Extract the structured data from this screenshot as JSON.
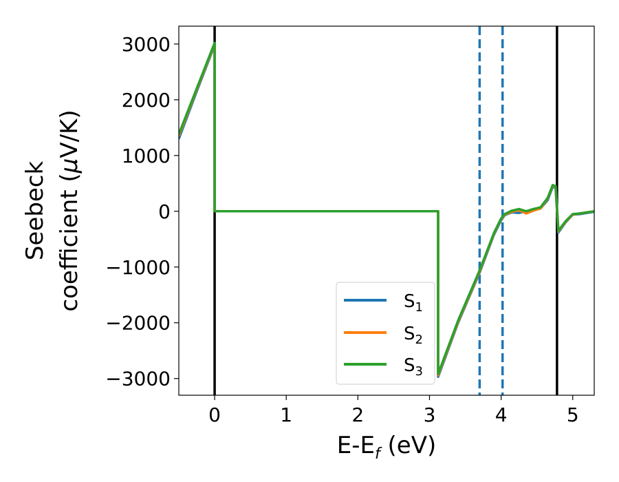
{
  "chart_data": {
    "type": "line",
    "xlabel_main": "E-E",
    "xlabel_sub": "f",
    "xlabel_tail": " (eV)",
    "ylabel_line1": "Seebeck",
    "ylabel_line2_pre": "coefficient  (",
    "ylabel_line2_mu": "μ",
    "ylabel_line2_post": "V/K)",
    "xlim": [
      -0.5,
      5.3
    ],
    "ylim": [
      -3300,
      3320
    ],
    "x_ticks": [
      0,
      1,
      2,
      3,
      4,
      5
    ],
    "x_tick_labels": [
      "0",
      "1",
      "2",
      "3",
      "4",
      "5"
    ],
    "y_ticks": [
      3000,
      2000,
      1000,
      0,
      -1000,
      -2000,
      -3000
    ],
    "y_tick_labels": [
      "3000",
      "2000",
      "1000",
      "0",
      "−1000",
      "−2000",
      "−3000"
    ],
    "grid": false,
    "legend_position": "lower-right",
    "vertical_lines": [
      {
        "x": 0.0,
        "style": "solid",
        "color": "#000000"
      },
      {
        "x": 4.78,
        "style": "solid",
        "color": "#000000"
      },
      {
        "x": 3.7,
        "style": "dashed",
        "color": "#1f77b4"
      },
      {
        "x": 4.02,
        "style": "dashed",
        "color": "#1f77b4"
      }
    ],
    "series": [
      {
        "name": "S",
        "sub": "1",
        "color": "#1f77b4",
        "points": [
          [
            -0.5,
            1300
          ],
          [
            -0.25,
            2150
          ],
          [
            0.0,
            2980
          ],
          [
            0.0,
            0
          ],
          [
            3.12,
            0
          ],
          [
            3.12,
            -2970
          ],
          [
            3.4,
            -2000
          ],
          [
            3.7,
            -1100
          ],
          [
            3.9,
            -420
          ],
          [
            4.0,
            -160
          ],
          [
            4.05,
            -70
          ],
          [
            4.15,
            -20
          ],
          [
            4.25,
            -30
          ],
          [
            4.35,
            0
          ],
          [
            4.45,
            20
          ],
          [
            4.55,
            50
          ],
          [
            4.65,
            200
          ],
          [
            4.72,
            440
          ],
          [
            4.76,
            420
          ],
          [
            4.8,
            -380
          ],
          [
            4.9,
            -200
          ],
          [
            5.0,
            -60
          ],
          [
            5.1,
            -50
          ],
          [
            5.2,
            -30
          ],
          [
            5.3,
            -10
          ]
        ]
      },
      {
        "name": "S",
        "sub": "2",
        "color": "#ff7f0e",
        "points": [
          [
            -0.5,
            1350
          ],
          [
            -0.25,
            2180
          ],
          [
            0.0,
            3000
          ],
          [
            0.0,
            0
          ],
          [
            3.12,
            0
          ],
          [
            3.12,
            -2940
          ],
          [
            3.4,
            -1980
          ],
          [
            3.7,
            -1080
          ],
          [
            3.9,
            -400
          ],
          [
            4.0,
            -140
          ],
          [
            4.05,
            -60
          ],
          [
            4.15,
            -10
          ],
          [
            4.25,
            20
          ],
          [
            4.35,
            -40
          ],
          [
            4.45,
            10
          ],
          [
            4.55,
            50
          ],
          [
            4.65,
            230
          ],
          [
            4.72,
            460
          ],
          [
            4.76,
            440
          ],
          [
            4.8,
            -360
          ],
          [
            4.9,
            -190
          ],
          [
            5.0,
            -60
          ],
          [
            5.1,
            -40
          ],
          [
            5.2,
            -20
          ],
          [
            5.3,
            0
          ]
        ]
      },
      {
        "name": "S",
        "sub": "3",
        "color": "#2ca02c",
        "points": [
          [
            -0.5,
            1380
          ],
          [
            -0.25,
            2200
          ],
          [
            0.0,
            3020
          ],
          [
            0.0,
            0
          ],
          [
            3.12,
            0
          ],
          [
            3.12,
            -2920
          ],
          [
            3.4,
            -1960
          ],
          [
            3.7,
            -1060
          ],
          [
            3.9,
            -390
          ],
          [
            4.0,
            -130
          ],
          [
            4.05,
            -50
          ],
          [
            4.15,
            10
          ],
          [
            4.25,
            40
          ],
          [
            4.35,
            0
          ],
          [
            4.45,
            40
          ],
          [
            4.55,
            70
          ],
          [
            4.65,
            240
          ],
          [
            4.72,
            470
          ],
          [
            4.76,
            450
          ],
          [
            4.8,
            -350
          ],
          [
            4.9,
            -180
          ],
          [
            5.0,
            -50
          ],
          [
            5.1,
            -40
          ],
          [
            5.2,
            -20
          ],
          [
            5.3,
            0
          ]
        ]
      }
    ]
  }
}
